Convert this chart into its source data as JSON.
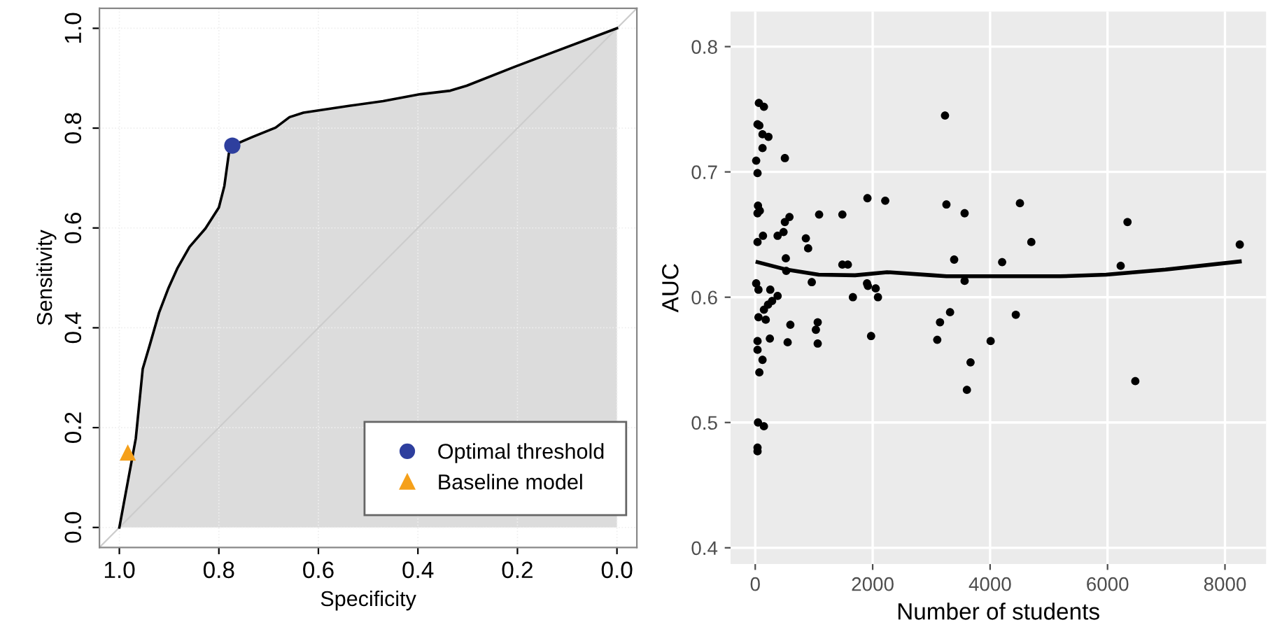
{
  "chart_data": [
    {
      "type": "line",
      "xlabel": "Specificity",
      "ylabel": "Sensitivity",
      "xlim": [
        1.04,
        -0.04
      ],
      "ylim": [
        -0.04,
        1.04
      ],
      "xticks": [
        {
          "value": 1,
          "label": "1.0"
        },
        0.8,
        0.6,
        0.4,
        0.2,
        {
          "value": 0,
          "label": "0.0"
        }
      ],
      "yticks": [
        {
          "value": 0,
          "label": "0.0"
        },
        0.2,
        0.4,
        0.6,
        0.8,
        {
          "value": 1,
          "label": "1.0"
        }
      ],
      "grid": true,
      "legend": "bottom right",
      "series": [
        {
          "type": "area",
          "color": "#dcdcdc",
          "x": [
            1.0,
            0.967,
            0.953,
            0.939,
            0.92,
            0.902,
            0.883,
            0.859,
            0.827,
            0.8,
            0.789,
            0.78,
            0.773,
            0.733,
            0.686,
            0.658,
            0.63,
            0.536,
            0.47,
            0.395,
            0.335,
            0.302,
            0.208,
            0.0
          ],
          "values": [
            0.0,
            0.178,
            0.318,
            0.365,
            0.431,
            0.478,
            0.52,
            0.562,
            0.599,
            0.641,
            0.684,
            0.749,
            0.765,
            0.782,
            0.801,
            0.822,
            0.831,
            0.845,
            0.854,
            0.868,
            0.875,
            0.885,
            0.922,
            1.0
          ]
        },
        {
          "type": "line",
          "color": "#cccccc",
          "x": [
            1.04,
            -0.04
          ],
          "values": [
            -0.04,
            1.04
          ]
        },
        {
          "type": "scatter",
          "name": "Optimal threshold",
          "color": "#2e3f9e",
          "marker": "circle",
          "x": [
            0.773
          ],
          "values": [
            0.765
          ]
        },
        {
          "type": "scatter",
          "name": "Baseline model",
          "color": "#f5a01a",
          "marker": "triangle",
          "x": [
            0.983
          ],
          "values": [
            0.15
          ]
        }
      ]
    },
    {
      "type": "scatter",
      "xlabel": "Number of students",
      "ylabel": "AUC",
      "xlim": [
        -420,
        8700
      ],
      "ylim": [
        0.387,
        0.828
      ],
      "xticks": [
        0,
        2000,
        4000,
        6000,
        8000
      ],
      "yticks": [
        0.4,
        0.5,
        0.6,
        0.7,
        0.8
      ],
      "grid": true,
      "series": [
        {
          "type": "scatter",
          "color": "#000000",
          "marker": "circle",
          "x": [
            62,
            148,
            39,
            70,
            124,
            225,
            124,
            16,
            505,
            39,
            47,
            78,
            39,
            505,
            583,
            1088,
            1484,
            1911,
            2214,
            132,
            39,
            381,
            482,
            862,
            901,
            521,
            528,
            1484,
            1577,
            963,
            16,
            55,
            1904,
            1919,
            2051,
            2090,
            1663,
            256,
            381,
            287,
            218,
            148,
            55,
            179,
            598,
            1064,
            1033,
            1064,
            552,
            249,
            39,
            39,
            124,
            70,
            1973,
            47,
            148,
            39,
            39,
            3100,
            3147,
            3232,
            3256,
            3388,
            3318,
            3566,
            3566,
            3667,
            3605,
            4009,
            4205,
            4438,
            4508,
            4702,
            6224,
            6340,
            6473,
            8252
          ],
          "values": [
            0.755,
            0.752,
            0.738,
            0.737,
            0.73,
            0.728,
            0.719,
            0.709,
            0.711,
            0.699,
            0.673,
            0.669,
            0.667,
            0.66,
            0.664,
            0.666,
            0.666,
            0.679,
            0.677,
            0.649,
            0.644,
            0.649,
            0.652,
            0.647,
            0.639,
            0.631,
            0.621,
            0.626,
            0.626,
            0.612,
            0.611,
            0.606,
            0.611,
            0.609,
            0.607,
            0.6,
            0.6,
            0.606,
            0.601,
            0.597,
            0.594,
            0.59,
            0.584,
            0.582,
            0.578,
            0.58,
            0.574,
            0.563,
            0.564,
            0.567,
            0.565,
            0.558,
            0.55,
            0.54,
            0.569,
            0.5,
            0.497,
            0.48,
            0.477,
            0.566,
            0.58,
            0.745,
            0.674,
            0.63,
            0.588,
            0.667,
            0.613,
            0.548,
            0.526,
            0.565,
            0.628,
            0.586,
            0.675,
            0.644,
            0.625,
            0.66,
            0.533,
            0.642
          ]
        },
        {
          "type": "line",
          "color": "#000000",
          "x": [
            39,
            536,
            1080,
            1700,
            2245,
            3020,
            3256,
            4033,
            5198,
            5976,
            6986,
            8252
          ],
          "values": [
            0.628,
            0.622,
            0.618,
            0.6175,
            0.62,
            0.6175,
            0.6167,
            0.6167,
            0.6167,
            0.618,
            0.622,
            0.6285
          ]
        }
      ]
    }
  ]
}
